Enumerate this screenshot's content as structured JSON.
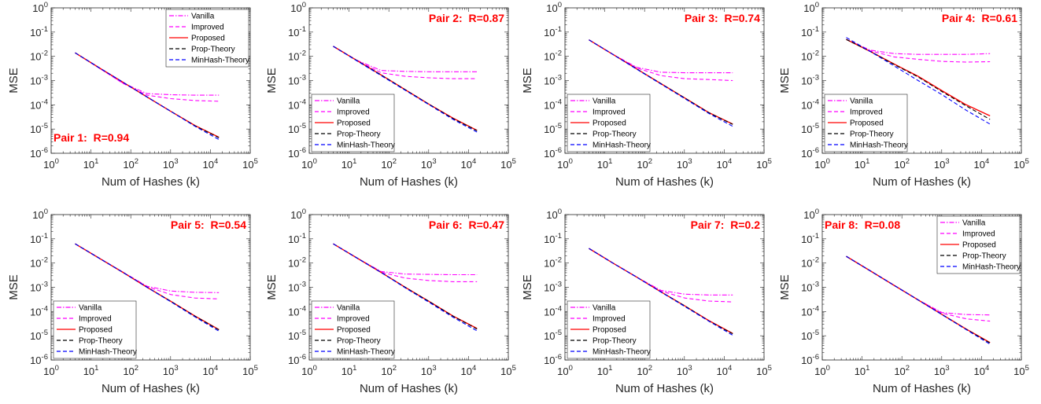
{
  "chart_data": [
    {
      "type": "line",
      "annotation": "Pair 1:  R=0.94",
      "annotation_pos": "bottom-left",
      "legend_pos": "top-right",
      "xlabel": "Num of Hashes (k)",
      "ylabel": "MSE",
      "xscale": "log",
      "yscale": "log",
      "xlim": [
        1,
        100000
      ],
      "ylim": [
        1e-06,
        1
      ],
      "x_ticks": [
        "10^0",
        "10^1",
        "10^2",
        "10^3",
        "10^4",
        "10^5"
      ],
      "y_ticks": [
        "10^-6",
        "10^-5",
        "10^-4",
        "10^-3",
        "10^-2",
        "10^-1",
        "10^0"
      ],
      "x": [
        4,
        16,
        64,
        256,
        1024,
        4096,
        16384
      ],
      "series": [
        {
          "name": "Vanilla",
          "color": "#ff00ff",
          "dash": "dashdot",
          "values": [
            0.014,
            0.0033,
            0.00078,
            0.00029,
            0.00026,
            0.00025,
            0.00025
          ]
        },
        {
          "name": "Improved",
          "color": "#ff00ff",
          "dash": "dashed",
          "values": [
            0.014,
            0.0033,
            0.00076,
            0.00025,
            0.00018,
            0.00015,
            0.00014
          ]
        },
        {
          "name": "Proposed",
          "color": "#ff0000",
          "dash": "solid",
          "values": [
            0.014,
            0.0034,
            0.00085,
            0.00021,
            5.3e-05,
            1.4e-05,
            4.6e-06
          ]
        },
        {
          "name": "Prop-Theory",
          "color": "#000000",
          "dash": "dashed",
          "values": [
            0.014,
            0.0034,
            0.00085,
            0.00021,
            5.3e-05,
            1.35e-05,
            4.4e-06
          ]
        },
        {
          "name": "MinHash-Theory",
          "color": "#0000ff",
          "dash": "dashed",
          "values": [
            0.014,
            0.0034,
            0.00085,
            0.00021,
            5.3e-05,
            1.3e-05,
            3.7e-06
          ]
        }
      ]
    },
    {
      "type": "line",
      "annotation": "Pair 2:  R=0.87",
      "annotation_pos": "top-right",
      "legend_pos": "bottom-left",
      "xlabel": "Num of Hashes (k)",
      "ylabel": "MSE",
      "xscale": "log",
      "yscale": "log",
      "xlim": [
        1,
        100000
      ],
      "ylim": [
        1e-06,
        1
      ],
      "x_ticks": [
        "10^0",
        "10^1",
        "10^2",
        "10^3",
        "10^4",
        "10^5"
      ],
      "y_ticks": [
        "10^-6",
        "10^-5",
        "10^-4",
        "10^-3",
        "10^-2",
        "10^-1",
        "10^0"
      ],
      "x": [
        4,
        16,
        64,
        256,
        1024,
        4096,
        16384
      ],
      "series": [
        {
          "name": "Vanilla",
          "color": "#ff00ff",
          "dash": "dashdot",
          "values": [
            0.026,
            0.0068,
            0.0026,
            0.0024,
            0.0023,
            0.0023,
            0.0023
          ]
        },
        {
          "name": "Improved",
          "color": "#ff00ff",
          "dash": "dashed",
          "values": [
            0.026,
            0.0066,
            0.0021,
            0.0015,
            0.0013,
            0.0012,
            0.0012
          ]
        },
        {
          "name": "Proposed",
          "color": "#ff0000",
          "dash": "solid",
          "values": [
            0.026,
            0.0066,
            0.0017,
            0.00042,
            0.000105,
            2.8e-05,
            8.8e-06
          ]
        },
        {
          "name": "Prop-Theory",
          "color": "#000000",
          "dash": "dashed",
          "values": [
            0.026,
            0.0066,
            0.0017,
            0.00042,
            0.000105,
            2.7e-05,
            8.5e-06
          ]
        },
        {
          "name": "MinHash-Theory",
          "color": "#0000ff",
          "dash": "dashed",
          "values": [
            0.026,
            0.0064,
            0.0016,
            0.0004,
            0.0001,
            2.5e-05,
            7.5e-06
          ]
        }
      ]
    },
    {
      "type": "line",
      "annotation": "Pair 3:  R=0.74",
      "annotation_pos": "top-right",
      "legend_pos": "bottom-left",
      "xlabel": "Num of Hashes (k)",
      "ylabel": "MSE",
      "xscale": "log",
      "yscale": "log",
      "xlim": [
        1,
        100000
      ],
      "ylim": [
        1e-06,
        1
      ],
      "x_ticks": [
        "10^0",
        "10^1",
        "10^2",
        "10^3",
        "10^4",
        "10^5"
      ],
      "y_ticks": [
        "10^-6",
        "10^-5",
        "10^-4",
        "10^-3",
        "10^-2",
        "10^-1",
        "10^0"
      ],
      "x": [
        4,
        16,
        64,
        256,
        1024,
        4096,
        16384
      ],
      "series": [
        {
          "name": "Vanilla",
          "color": "#ff00ff",
          "dash": "dashdot",
          "values": [
            0.048,
            0.012,
            0.0035,
            0.0022,
            0.0021,
            0.0021,
            0.0021
          ]
        },
        {
          "name": "Improved",
          "color": "#ff00ff",
          "dash": "dashed",
          "values": [
            0.048,
            0.012,
            0.0033,
            0.0016,
            0.0012,
            0.0011,
            0.001
          ]
        },
        {
          "name": "Proposed",
          "color": "#ff0000",
          "dash": "solid",
          "values": [
            0.048,
            0.012,
            0.003,
            0.00075,
            0.00019,
            4.8e-05,
            1.6e-05
          ]
        },
        {
          "name": "Prop-Theory",
          "color": "#000000",
          "dash": "dashed",
          "values": [
            0.048,
            0.012,
            0.003,
            0.00075,
            0.00019,
            4.7e-05,
            1.55e-05
          ]
        },
        {
          "name": "MinHash-Theory",
          "color": "#0000ff",
          "dash": "dashed",
          "values": [
            0.048,
            0.012,
            0.0029,
            0.00072,
            0.00018,
            4.4e-05,
            1.3e-05
          ]
        }
      ]
    },
    {
      "type": "line",
      "annotation": "Pair 4:  R=0.61",
      "annotation_pos": "top-right",
      "legend_pos": "bottom-left",
      "xlabel": "Num of Hashes (k)",
      "ylabel": "MSE",
      "xscale": "log",
      "yscale": "log",
      "xlim": [
        1,
        100000
      ],
      "ylim": [
        1e-06,
        1
      ],
      "x_ticks": [
        "10^0",
        "10^1",
        "10^2",
        "10^3",
        "10^4",
        "10^5"
      ],
      "y_ticks": [
        "10^-6",
        "10^-5",
        "10^-4",
        "10^-3",
        "10^-2",
        "10^-1",
        "10^0"
      ],
      "x": [
        4,
        16,
        64,
        256,
        1024,
        4096,
        16384
      ],
      "series": [
        {
          "name": "Vanilla",
          "color": "#ff00ff",
          "dash": "dashdot",
          "values": [
            0.05,
            0.018,
            0.013,
            0.012,
            0.012,
            0.012,
            0.013
          ]
        },
        {
          "name": "Improved",
          "color": "#ff00ff",
          "dash": "dashed",
          "values": [
            0.05,
            0.017,
            0.0095,
            0.0075,
            0.0062,
            0.0058,
            0.006
          ]
        },
        {
          "name": "Proposed",
          "color": "#ff0000",
          "dash": "solid",
          "values": [
            0.05,
            0.016,
            0.0048,
            0.0015,
            0.00038,
            0.0001,
            3.5e-05
          ]
        },
        {
          "name": "Prop-Theory",
          "color": "#000000",
          "dash": "dashed",
          "values": [
            0.05,
            0.016,
            0.0046,
            0.0014,
            0.00035,
            9e-05,
            2.5e-05
          ]
        },
        {
          "name": "MinHash-Theory",
          "color": "#0000ff",
          "dash": "dashed",
          "values": [
            0.06,
            0.016,
            0.004,
            0.001,
            0.00026,
            6e-05,
            1.6e-05
          ]
        }
      ]
    },
    {
      "type": "line",
      "annotation": "Pair 5:  R=0.54",
      "annotation_pos": "top-right",
      "legend_pos": "bottom-left",
      "xlabel": "Num of Hashes (k)",
      "ylabel": "MSE",
      "xscale": "log",
      "yscale": "log",
      "xlim": [
        1,
        100000
      ],
      "ylim": [
        1e-06,
        1
      ],
      "x_ticks": [
        "10^0",
        "10^1",
        "10^2",
        "10^3",
        "10^4",
        "10^5"
      ],
      "y_ticks": [
        "10^-6",
        "10^-5",
        "10^-4",
        "10^-3",
        "10^-2",
        "10^-1",
        "10^0"
      ],
      "x": [
        4,
        16,
        64,
        256,
        1024,
        4096,
        16384
      ],
      "series": [
        {
          "name": "Vanilla",
          "color": "#ff00ff",
          "dash": "dashdot",
          "values": [
            0.062,
            0.016,
            0.0042,
            0.0011,
            0.0007,
            0.00062,
            0.0006
          ]
        },
        {
          "name": "Improved",
          "color": "#ff00ff",
          "dash": "dashed",
          "values": [
            0.062,
            0.016,
            0.0041,
            0.00105,
            0.0005,
            0.00036,
            0.00033
          ]
        },
        {
          "name": "Proposed",
          "color": "#ff0000",
          "dash": "solid",
          "values": [
            0.062,
            0.016,
            0.0041,
            0.001,
            0.00026,
            6.5e-05,
            1.8e-05
          ]
        },
        {
          "name": "Prop-Theory",
          "color": "#000000",
          "dash": "dashed",
          "values": [
            0.062,
            0.016,
            0.0041,
            0.001,
            0.00026,
            6.4e-05,
            1.75e-05
          ]
        },
        {
          "name": "MinHash-Theory",
          "color": "#0000ff",
          "dash": "dashed",
          "values": [
            0.062,
            0.016,
            0.0041,
            0.001,
            0.00025,
            6e-05,
            1.55e-05
          ]
        }
      ]
    },
    {
      "type": "line",
      "annotation": "Pair 6:  R=0.47",
      "annotation_pos": "top-right",
      "legend_pos": "bottom-left",
      "xlabel": "Num of Hashes (k)",
      "ylabel": "MSE",
      "xscale": "log",
      "yscale": "log",
      "xlim": [
        1,
        100000
      ],
      "ylim": [
        1e-06,
        1
      ],
      "x_ticks": [
        "10^0",
        "10^1",
        "10^2",
        "10^3",
        "10^4",
        "10^5"
      ],
      "y_ticks": [
        "10^-6",
        "10^-5",
        "10^-4",
        "10^-3",
        "10^-2",
        "10^-1",
        "10^0"
      ],
      "x": [
        4,
        16,
        64,
        256,
        1024,
        4096,
        16384
      ],
      "series": [
        {
          "name": "Vanilla",
          "color": "#ff00ff",
          "dash": "dashdot",
          "values": [
            0.062,
            0.016,
            0.0045,
            0.0035,
            0.0034,
            0.0033,
            0.0033
          ]
        },
        {
          "name": "Improved",
          "color": "#ff00ff",
          "dash": "dashed",
          "values": [
            0.062,
            0.016,
            0.0042,
            0.0024,
            0.0019,
            0.0017,
            0.0017
          ]
        },
        {
          "name": "Proposed",
          "color": "#ff0000",
          "dash": "solid",
          "values": [
            0.062,
            0.016,
            0.0041,
            0.001,
            0.00026,
            6.5e-05,
            2e-05
          ]
        },
        {
          "name": "Prop-Theory",
          "color": "#000000",
          "dash": "dashed",
          "values": [
            0.062,
            0.016,
            0.0041,
            0.001,
            0.00026,
            6.4e-05,
            1.9e-05
          ]
        },
        {
          "name": "MinHash-Theory",
          "color": "#0000ff",
          "dash": "dashed",
          "values": [
            0.062,
            0.016,
            0.0041,
            0.00095,
            0.00024,
            5.8e-05,
            1.6e-05
          ]
        }
      ]
    },
    {
      "type": "line",
      "annotation": "Pair 7:  R=0.2",
      "annotation_pos": "top-right",
      "legend_pos": "bottom-left",
      "xlabel": "Num of Hashes (k)",
      "ylabel": "MSE",
      "xscale": "log",
      "yscale": "log",
      "xlim": [
        1,
        100000
      ],
      "ylim": [
        1e-06,
        1
      ],
      "x_ticks": [
        "10^0",
        "10^1",
        "10^2",
        "10^3",
        "10^4",
        "10^5"
      ],
      "y_ticks": [
        "10^-6",
        "10^-5",
        "10^-4",
        "10^-3",
        "10^-2",
        "10^-1",
        "10^0"
      ],
      "x": [
        4,
        16,
        64,
        256,
        1024,
        4096,
        16384
      ],
      "series": [
        {
          "name": "Vanilla",
          "color": "#ff00ff",
          "dash": "dashdot",
          "values": [
            0.04,
            0.01,
            0.0026,
            0.00075,
            0.00052,
            0.00048,
            0.00048
          ]
        },
        {
          "name": "Improved",
          "color": "#ff00ff",
          "dash": "dashed",
          "values": [
            0.04,
            0.01,
            0.0026,
            0.0007,
            0.00036,
            0.00027,
            0.00025
          ]
        },
        {
          "name": "Proposed",
          "color": "#ff0000",
          "dash": "solid",
          "values": [
            0.04,
            0.01,
            0.0026,
            0.00065,
            0.00017,
            4.2e-05,
            1.25e-05
          ]
        },
        {
          "name": "Prop-Theory",
          "color": "#000000",
          "dash": "dashed",
          "values": [
            0.04,
            0.01,
            0.0026,
            0.00065,
            0.00017,
            4.1e-05,
            1.2e-05
          ]
        },
        {
          "name": "MinHash-Theory",
          "color": "#0000ff",
          "dash": "dashed",
          "values": [
            0.04,
            0.01,
            0.0026,
            0.00064,
            0.00016,
            4e-05,
            1.05e-05
          ]
        }
      ]
    },
    {
      "type": "line",
      "annotation": "Pair 8:  R=0.08",
      "annotation_pos": "top-left",
      "legend_pos": "top-right",
      "xlabel": "Num of Hashes (k)",
      "ylabel": "MSE",
      "xscale": "log",
      "yscale": "log",
      "xlim": [
        1,
        100000
      ],
      "ylim": [
        1e-06,
        1
      ],
      "x_ticks": [
        "10^0",
        "10^1",
        "10^2",
        "10^3",
        "10^4",
        "10^5"
      ],
      "y_ticks": [
        "10^-6",
        "10^-5",
        "10^-4",
        "10^-3",
        "10^-2",
        "10^-1",
        "10^0"
      ],
      "x": [
        4,
        16,
        64,
        256,
        1024,
        4096,
        16384
      ],
      "series": [
        {
          "name": "Vanilla",
          "color": "#ff00ff",
          "dash": "dashdot",
          "values": [
            0.019,
            0.0048,
            0.0012,
            0.0003,
            9e-05,
            7.5e-05,
            7.2e-05
          ]
        },
        {
          "name": "Improved",
          "color": "#ff00ff",
          "dash": "dashed",
          "values": [
            0.019,
            0.0048,
            0.0012,
            0.0003,
            8.5e-05,
            5e-05,
            4e-05
          ]
        },
        {
          "name": "Proposed",
          "color": "#ff0000",
          "dash": "solid",
          "values": [
            0.019,
            0.0048,
            0.0012,
            0.0003,
            7.5e-05,
            1.9e-05,
            5.2e-06
          ]
        },
        {
          "name": "Prop-Theory",
          "color": "#000000",
          "dash": "dashed",
          "values": [
            0.019,
            0.0048,
            0.0012,
            0.0003,
            7.5e-05,
            1.85e-05,
            5e-06
          ]
        },
        {
          "name": "MinHash-Theory",
          "color": "#0000ff",
          "dash": "dashed",
          "values": [
            0.019,
            0.0048,
            0.0012,
            0.0003,
            7.3e-05,
            1.8e-05,
            4.5e-06
          ]
        }
      ]
    }
  ]
}
